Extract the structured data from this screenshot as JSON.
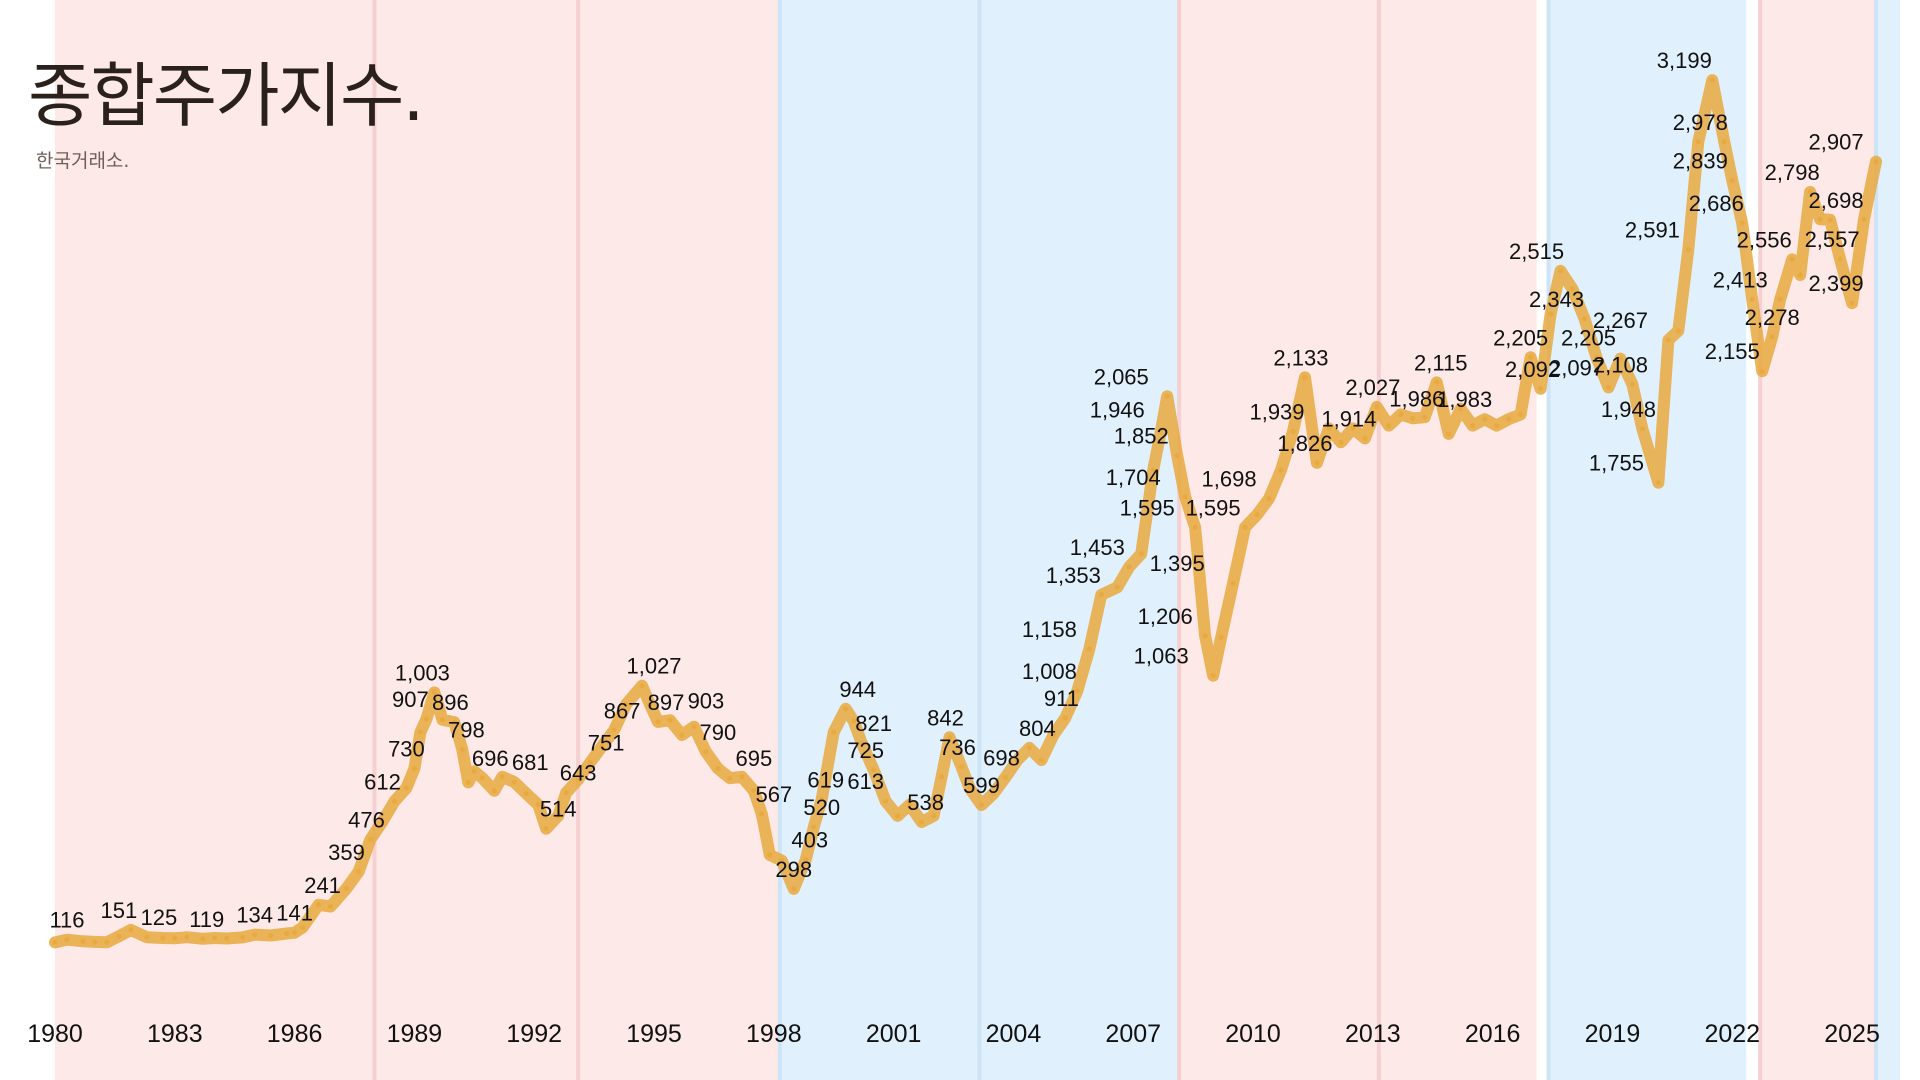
{
  "header": {
    "title": "종합주가지수.",
    "subtitle": "한국거래소."
  },
  "colors": {
    "line": "#e8a93e",
    "background_red": "#fde9e7",
    "background_blue": "#e1f0fd",
    "divider_red": "#f6d0d0",
    "divider_blue": "#cde3f6"
  },
  "chart_data": {
    "type": "line",
    "title": "종합주가지수.",
    "subtitle": "한국거래소.",
    "xlabel": "",
    "ylabel": "",
    "xlim": [
      1980,
      2026
    ],
    "ylim": [
      0,
      3300
    ],
    "grid": false,
    "x_ticks": [
      1980,
      1983,
      1986,
      1989,
      1992,
      1995,
      1998,
      2001,
      2004,
      2007,
      2010,
      2013,
      2016,
      2019,
      2022,
      2025
    ],
    "background_bands": [
      {
        "from": 1980,
        "to": 1988.0,
        "color": "red"
      },
      {
        "from": 1988.0,
        "to": 1993.1,
        "color": "red"
      },
      {
        "from": 1993.1,
        "to": 1998.15,
        "color": "red"
      },
      {
        "from": 1998.15,
        "to": 2003.15,
        "color": "blue"
      },
      {
        "from": 2003.15,
        "to": 2008.15,
        "color": "blue"
      },
      {
        "from": 2008.15,
        "to": 2013.15,
        "color": "red"
      },
      {
        "from": 2013.15,
        "to": 2017.1,
        "color": "red"
      },
      {
        "from": 2017.4,
        "to": 2022.35,
        "color": "blue"
      },
      {
        "from": 2022.7,
        "to": 2025.6,
        "color": "red"
      },
      {
        "from": 2025.6,
        "to": 2026.2,
        "color": "blue"
      }
    ],
    "series": [
      {
        "values": [
          [
            1980.0,
            106
          ],
          [
            1980.3,
            116
          ],
          [
            1980.7,
            110
          ],
          [
            1981.0,
            108
          ],
          [
            1981.3,
            107
          ],
          [
            1981.6,
            128
          ],
          [
            1981.9,
            151
          ],
          [
            1982.3,
            125
          ],
          [
            1982.7,
            122
          ],
          [
            1983.0,
            121
          ],
          [
            1983.3,
            125
          ],
          [
            1983.7,
            119
          ],
          [
            1984.0,
            122
          ],
          [
            1984.3,
            120
          ],
          [
            1984.7,
            124
          ],
          [
            1985.0,
            134
          ],
          [
            1985.4,
            131
          ],
          [
            1985.8,
            138
          ],
          [
            1986.0,
            141
          ],
          [
            1986.2,
            160
          ],
          [
            1986.6,
            241
          ],
          [
            1986.9,
            235
          ],
          [
            1987.3,
            300
          ],
          [
            1987.6,
            359
          ],
          [
            1987.9,
            476
          ],
          [
            1988.2,
            540
          ],
          [
            1988.5,
            612
          ],
          [
            1988.8,
            660
          ],
          [
            1989.0,
            730
          ],
          [
            1989.15,
            860
          ],
          [
            1989.3,
            907
          ],
          [
            1989.5,
            1003
          ],
          [
            1989.7,
            905
          ],
          [
            1990.0,
            896
          ],
          [
            1990.2,
            798
          ],
          [
            1990.35,
            680
          ],
          [
            1990.5,
            720
          ],
          [
            1990.7,
            696
          ],
          [
            1991.0,
            650
          ],
          [
            1991.2,
            700
          ],
          [
            1991.5,
            681
          ],
          [
            1991.8,
            640
          ],
          [
            1992.1,
            600
          ],
          [
            1992.3,
            514
          ],
          [
            1992.6,
            560
          ],
          [
            1992.8,
            643
          ],
          [
            1993.1,
            690
          ],
          [
            1993.4,
            751
          ],
          [
            1993.7,
            810
          ],
          [
            1994.0,
            867
          ],
          [
            1994.3,
            960
          ],
          [
            1994.7,
            1027
          ],
          [
            1994.9,
            960
          ],
          [
            1995.1,
            897
          ],
          [
            1995.4,
            903
          ],
          [
            1995.7,
            850
          ],
          [
            1996.0,
            880
          ],
          [
            1996.3,
            790
          ],
          [
            1996.6,
            730
          ],
          [
            1996.9,
            695
          ],
          [
            1997.2,
            700
          ],
          [
            1997.5,
            650
          ],
          [
            1997.7,
            567
          ],
          [
            1997.9,
            420
          ],
          [
            1998.2,
            400
          ],
          [
            1998.5,
            298
          ],
          [
            1998.8,
            403
          ],
          [
            1999.0,
            520
          ],
          [
            1999.2,
            619
          ],
          [
            1999.5,
            860
          ],
          [
            1999.8,
            944
          ],
          [
            2000.0,
            900
          ],
          [
            2000.2,
            821
          ],
          [
            2000.5,
            725
          ],
          [
            2000.8,
            613
          ],
          [
            2001.1,
            560
          ],
          [
            2001.4,
            600
          ],
          [
            2001.7,
            538
          ],
          [
            2002.0,
            560
          ],
          [
            2002.2,
            700
          ],
          [
            2002.4,
            842
          ],
          [
            2002.7,
            736
          ],
          [
            2002.9,
            660
          ],
          [
            2003.2,
            599
          ],
          [
            2003.5,
            640
          ],
          [
            2003.8,
            698
          ],
          [
            2004.1,
            760
          ],
          [
            2004.4,
            804
          ],
          [
            2004.7,
            760
          ],
          [
            2005.0,
            850
          ],
          [
            2005.3,
            911
          ],
          [
            2005.6,
            1008
          ],
          [
            2005.9,
            1158
          ],
          [
            2006.2,
            1353
          ],
          [
            2006.6,
            1380
          ],
          [
            2006.9,
            1453
          ],
          [
            2007.2,
            1500
          ],
          [
            2007.5,
            1800
          ],
          [
            2007.7,
            1946
          ],
          [
            2007.85,
            2065
          ],
          [
            2008.1,
            1852
          ],
          [
            2008.3,
            1704
          ],
          [
            2008.55,
            1595
          ],
          [
            2008.8,
            1206
          ],
          [
            2009.0,
            1063
          ],
          [
            2009.2,
            1200
          ],
          [
            2009.5,
            1395
          ],
          [
            2009.8,
            1595
          ],
          [
            2010.1,
            1640
          ],
          [
            2010.4,
            1698
          ],
          [
            2010.7,
            1800
          ],
          [
            2011.0,
            1939
          ],
          [
            2011.3,
            2133
          ],
          [
            2011.6,
            1826
          ],
          [
            2011.9,
            1950
          ],
          [
            2012.2,
            1900
          ],
          [
            2012.5,
            1950
          ],
          [
            2012.8,
            1914
          ],
          [
            2013.1,
            2027
          ],
          [
            2013.4,
            1960
          ],
          [
            2013.7,
            2000
          ],
          [
            2014.0,
            1986
          ],
          [
            2014.3,
            1990
          ],
          [
            2014.6,
            2115
          ],
          [
            2014.9,
            1930
          ],
          [
            2015.2,
            2020
          ],
          [
            2015.5,
            1960
          ],
          [
            2015.8,
            1983
          ],
          [
            2016.1,
            1960
          ],
          [
            2016.4,
            1983
          ],
          [
            2016.7,
            2000
          ],
          [
            2016.95,
            2205
          ],
          [
            2017.2,
            2092
          ],
          [
            2017.45,
            2360
          ],
          [
            2017.7,
            2515
          ],
          [
            2018.0,
            2450
          ],
          [
            2018.3,
            2343
          ],
          [
            2018.6,
            2205
          ],
          [
            2018.9,
            2097
          ],
          [
            2019.2,
            2200
          ],
          [
            2019.5,
            2108
          ],
          [
            2019.75,
            1948
          ],
          [
            2020.15,
            1755
          ],
          [
            2020.4,
            2267
          ],
          [
            2020.65,
            2300
          ],
          [
            2020.9,
            2591
          ],
          [
            2021.15,
            2978
          ],
          [
            2021.5,
            3199
          ],
          [
            2021.8,
            2978
          ],
          [
            2022.0,
            2839
          ],
          [
            2022.25,
            2686
          ],
          [
            2022.5,
            2413
          ],
          [
            2022.75,
            2155
          ],
          [
            2023.0,
            2278
          ],
          [
            2023.2,
            2413
          ],
          [
            2023.5,
            2556
          ],
          [
            2023.7,
            2500
          ],
          [
            2023.95,
            2798
          ],
          [
            2024.2,
            2700
          ],
          [
            2024.45,
            2698
          ],
          [
            2024.7,
            2557
          ],
          [
            2025.0,
            2399
          ],
          [
            2025.3,
            2700
          ],
          [
            2025.6,
            2907
          ]
        ]
      }
    ],
    "point_labels": [
      {
        "x": 1980.3,
        "y": 116,
        "text": "116"
      },
      {
        "x": 1981.6,
        "y": 151,
        "text": "151"
      },
      {
        "x": 1982.6,
        "y": 125,
        "text": "125"
      },
      {
        "x": 1983.8,
        "y": 119,
        "text": "119"
      },
      {
        "x": 1985.0,
        "y": 134,
        "text": "134"
      },
      {
        "x": 1986.0,
        "y": 141,
        "text": "141"
      },
      {
        "x": 1986.7,
        "y": 241,
        "text": "241"
      },
      {
        "x": 1987.3,
        "y": 359,
        "text": "359"
      },
      {
        "x": 1987.8,
        "y": 476,
        "text": "476"
      },
      {
        "x": 1988.2,
        "y": 612,
        "text": "612"
      },
      {
        "x": 1988.8,
        "y": 730,
        "text": "730"
      },
      {
        "x": 1988.9,
        "y": 907,
        "text": "907"
      },
      {
        "x": 1989.2,
        "y": 1003,
        "text": "1,003"
      },
      {
        "x": 1989.9,
        "y": 896,
        "text": "896"
      },
      {
        "x": 1990.3,
        "y": 798,
        "text": "798"
      },
      {
        "x": 1990.9,
        "y": 696,
        "text": "696"
      },
      {
        "x": 1991.9,
        "y": 681,
        "text": "681"
      },
      {
        "x": 1992.6,
        "y": 514,
        "text": "514"
      },
      {
        "x": 1993.1,
        "y": 643,
        "text": "643"
      },
      {
        "x": 1993.8,
        "y": 751,
        "text": "751"
      },
      {
        "x": 1994.2,
        "y": 867,
        "text": "867"
      },
      {
        "x": 1995.0,
        "y": 1027,
        "text": "1,027"
      },
      {
        "x": 1995.3,
        "y": 897,
        "text": "897"
      },
      {
        "x": 1996.3,
        "y": 903,
        "text": "903"
      },
      {
        "x": 1996.6,
        "y": 790,
        "text": "790"
      },
      {
        "x": 1997.5,
        "y": 695,
        "text": "695"
      },
      {
        "x": 1998.0,
        "y": 567,
        "text": "567"
      },
      {
        "x": 1998.5,
        "y": 298,
        "text": "298"
      },
      {
        "x": 1998.9,
        "y": 403,
        "text": "403"
      },
      {
        "x": 1999.2,
        "y": 520,
        "text": "520"
      },
      {
        "x": 1999.3,
        "y": 619,
        "text": "619"
      },
      {
        "x": 2000.1,
        "y": 944,
        "text": "944"
      },
      {
        "x": 2000.5,
        "y": 821,
        "text": "821"
      },
      {
        "x": 2000.3,
        "y": 725,
        "text": "725"
      },
      {
        "x": 2000.3,
        "y": 613,
        "text": "613"
      },
      {
        "x": 2001.8,
        "y": 538,
        "text": "538"
      },
      {
        "x": 2002.3,
        "y": 842,
        "text": "842"
      },
      {
        "x": 2002.6,
        "y": 736,
        "text": "736"
      },
      {
        "x": 2003.2,
        "y": 599,
        "text": "599"
      },
      {
        "x": 2003.7,
        "y": 698,
        "text": "698"
      },
      {
        "x": 2004.6,
        "y": 804,
        "text": "804"
      },
      {
        "x": 2005.2,
        "y": 911,
        "text": "911"
      },
      {
        "x": 2004.9,
        "y": 1008,
        "text": "1,008"
      },
      {
        "x": 2004.9,
        "y": 1158,
        "text": "1,158"
      },
      {
        "x": 2005.5,
        "y": 1353,
        "text": "1,353"
      },
      {
        "x": 2006.1,
        "y": 1453,
        "text": "1,453"
      },
      {
        "x": 2006.6,
        "y": 1946,
        "text": "1,946"
      },
      {
        "x": 2006.7,
        "y": 2065,
        "text": "2,065"
      },
      {
        "x": 2007.2,
        "y": 1852,
        "text": "1,852"
      },
      {
        "x": 2007.0,
        "y": 1704,
        "text": "1,704"
      },
      {
        "x": 2007.35,
        "y": 1595,
        "text": "1,595"
      },
      {
        "x": 2008.1,
        "y": 1395,
        "text": "1,395"
      },
      {
        "x": 2007.8,
        "y": 1206,
        "text": "1,206"
      },
      {
        "x": 2007.7,
        "y": 1063,
        "text": "1,063"
      },
      {
        "x": 2009.0,
        "y": 1595,
        "text": "1,595"
      },
      {
        "x": 2009.4,
        "y": 1698,
        "text": "1,698"
      },
      {
        "x": 2010.6,
        "y": 1939,
        "text": "1,939"
      },
      {
        "x": 2011.2,
        "y": 2133,
        "text": "2,133"
      },
      {
        "x": 2011.3,
        "y": 1826,
        "text": "1,826"
      },
      {
        "x": 2012.4,
        "y": 1914,
        "text": "1,914"
      },
      {
        "x": 2013.0,
        "y": 2027,
        "text": "2,027"
      },
      {
        "x": 2014.1,
        "y": 1986,
        "text": "1,986"
      },
      {
        "x": 2014.7,
        "y": 2115,
        "text": "2,115"
      },
      {
        "x": 2015.3,
        "y": 1983,
        "text": "1,983"
      },
      {
        "x": 2016.7,
        "y": 2205,
        "text": "2,205"
      },
      {
        "x": 2017.0,
        "y": 2092,
        "text": "2,092"
      },
      {
        "x": 2017.1,
        "y": 2515,
        "text": "2,515"
      },
      {
        "x": 2017.6,
        "y": 2343,
        "text": "2,343"
      },
      {
        "x": 2018.4,
        "y": 2205,
        "text": "2,205"
      },
      {
        "x": 2018.1,
        "y": 2097,
        "text": "2,097"
      },
      {
        "x": 2019.2,
        "y": 2108,
        "text": "2,108"
      },
      {
        "x": 2019.2,
        "y": 2267,
        "text": "2,267"
      },
      {
        "x": 2019.4,
        "y": 1948,
        "text": "1,948"
      },
      {
        "x": 2019.1,
        "y": 1755,
        "text": "1,755"
      },
      {
        "x": 2020.0,
        "y": 2591,
        "text": "2,591"
      },
      {
        "x": 2020.8,
        "y": 3199,
        "text": "3,199"
      },
      {
        "x": 2021.2,
        "y": 2978,
        "text": "2,978"
      },
      {
        "x": 2021.2,
        "y": 2839,
        "text": "2,839"
      },
      {
        "x": 2021.6,
        "y": 2686,
        "text": "2,686"
      },
      {
        "x": 2022.2,
        "y": 2413,
        "text": "2,413"
      },
      {
        "x": 2022.0,
        "y": 2155,
        "text": "2,155"
      },
      {
        "x": 2023.0,
        "y": 2278,
        "text": "2,278"
      },
      {
        "x": 2022.8,
        "y": 2556,
        "text": "2,556"
      },
      {
        "x": 2023.5,
        "y": 2798,
        "text": "2,798"
      },
      {
        "x": 2024.6,
        "y": 2399,
        "text": "2,399"
      },
      {
        "x": 2024.5,
        "y": 2557,
        "text": "2,557"
      },
      {
        "x": 2024.6,
        "y": 2698,
        "text": "2,698"
      },
      {
        "x": 2024.6,
        "y": 2907,
        "text": "2,907"
      }
    ]
  }
}
